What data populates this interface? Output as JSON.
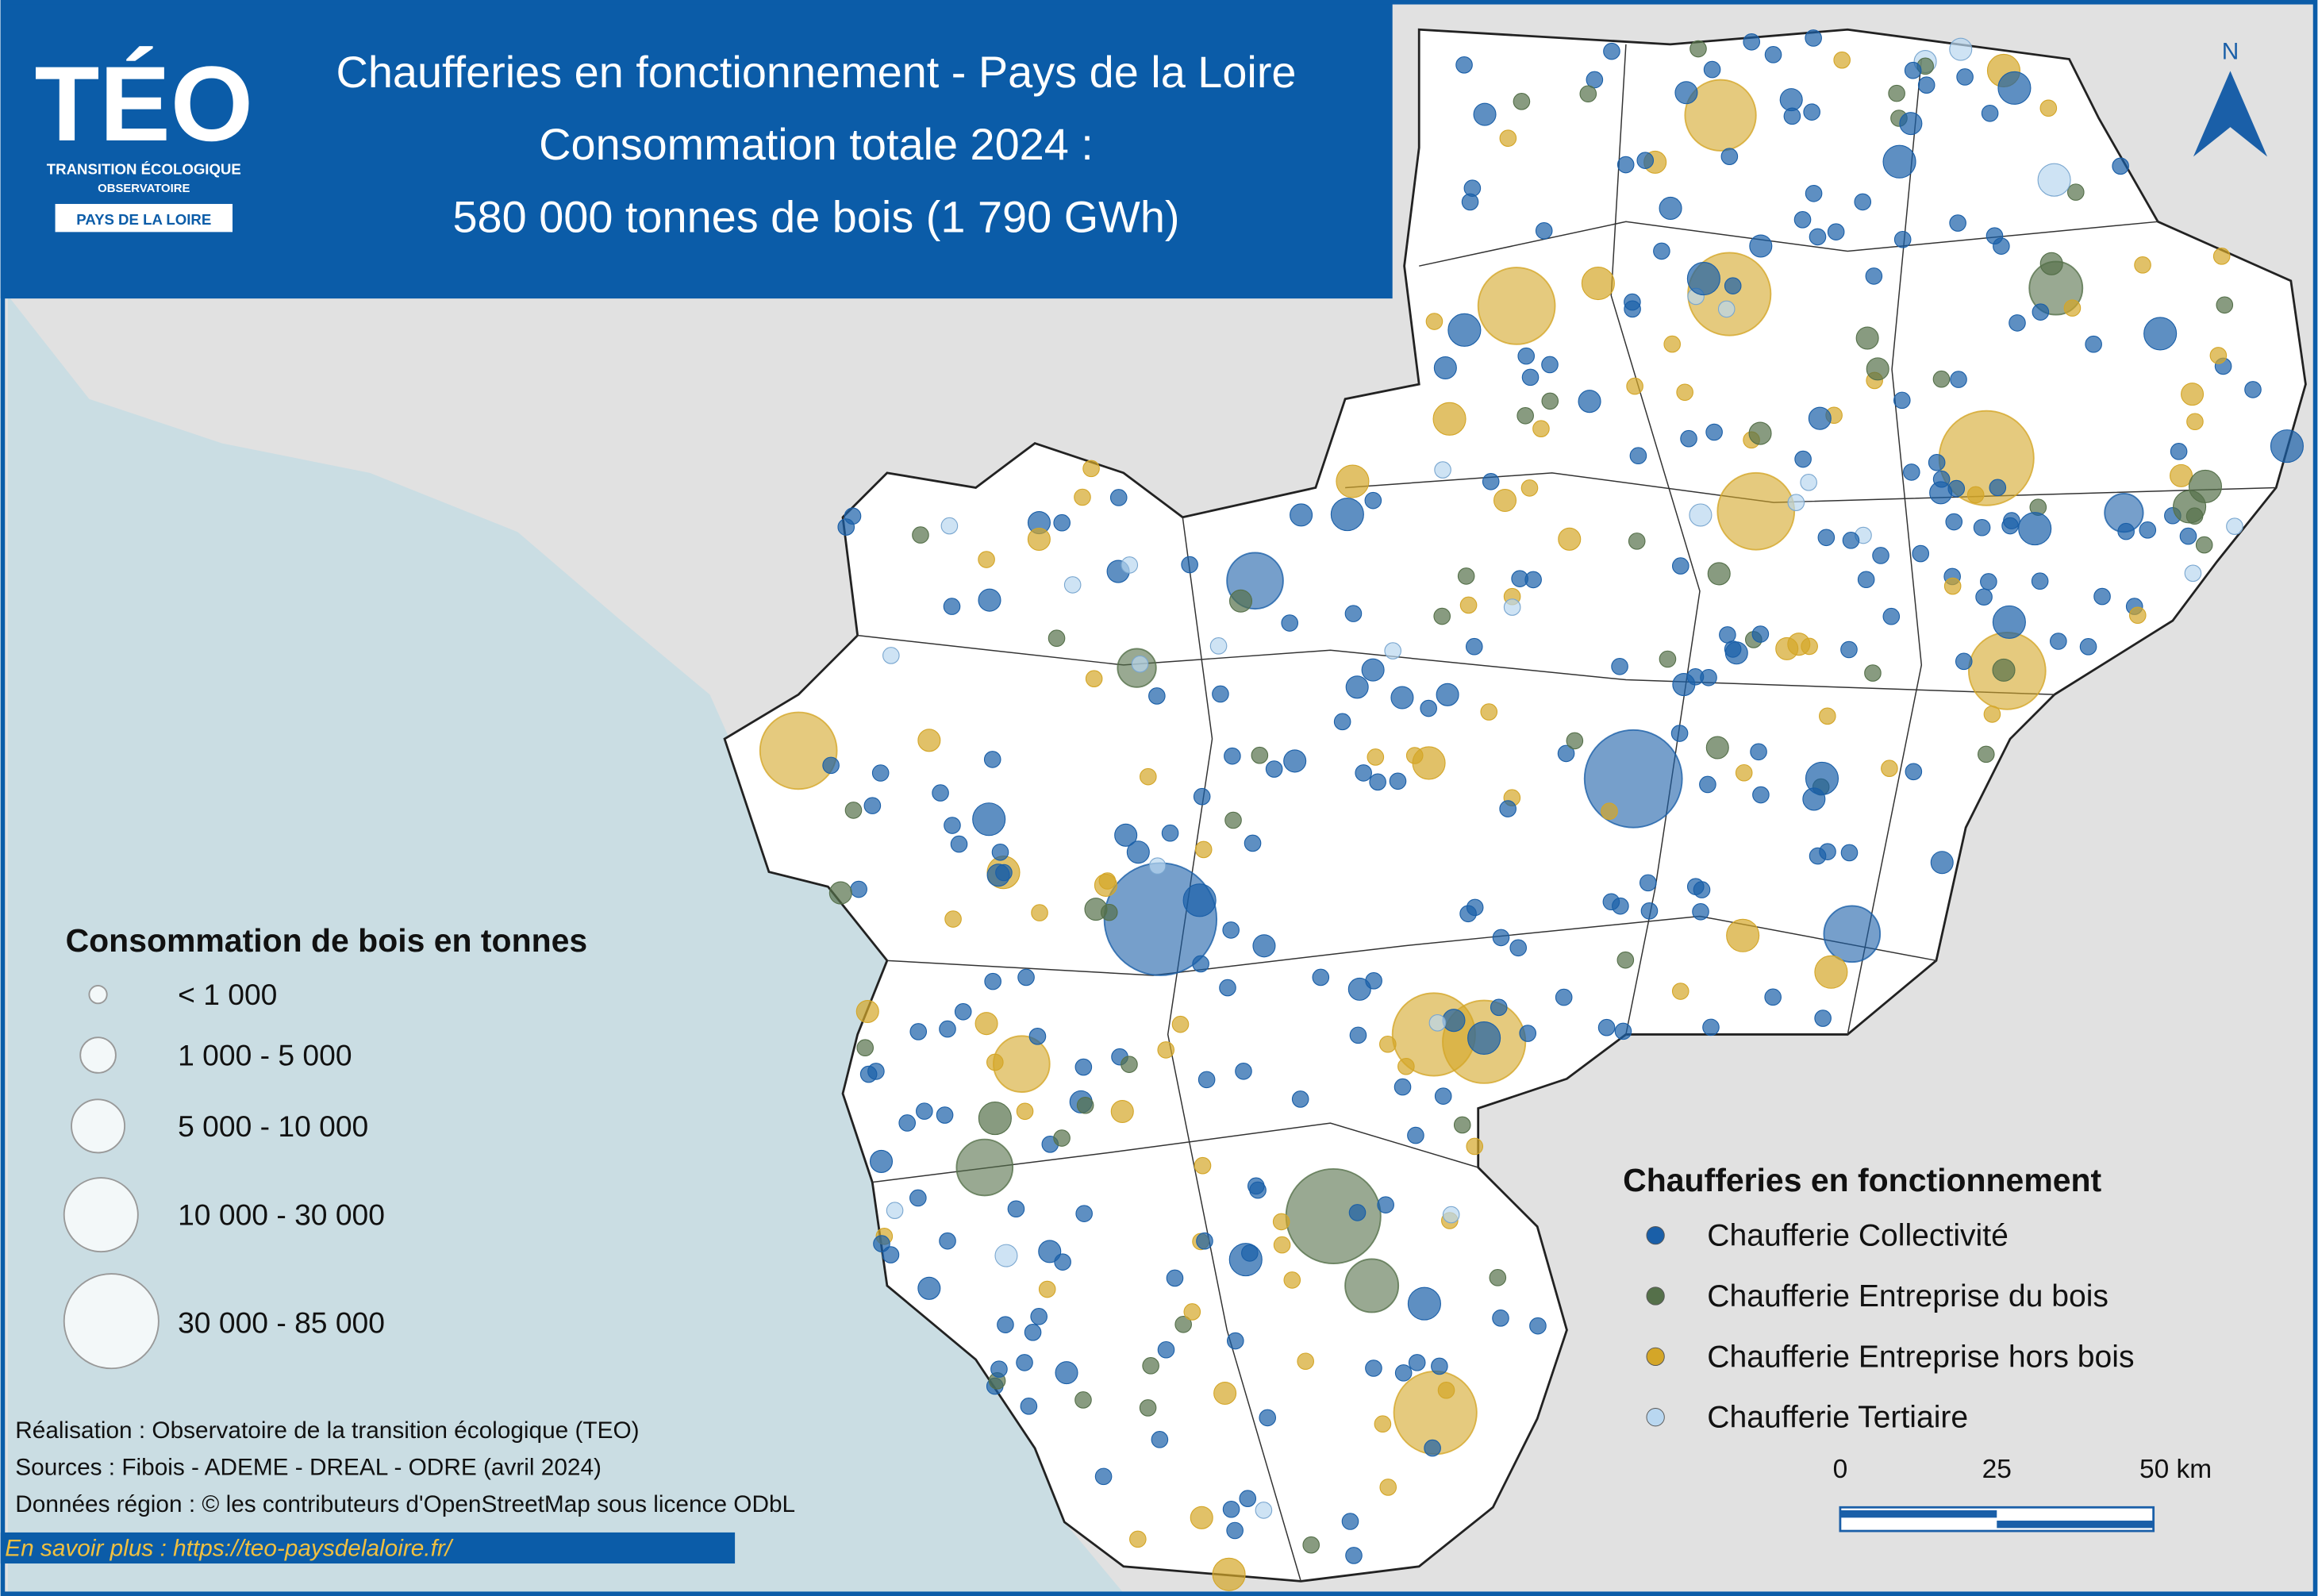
{
  "header": {
    "logo": "TÉO",
    "logo_line_1": "TRANSITION ÉCOLOGIQUE",
    "logo_line_2": "OBSERVATOIRE",
    "logo_region": "PAYS DE LA LOIRE",
    "title_lines": [
      "Chaufferies en fonctionnement - Pays de la Loire",
      "Consommation totale 2024 :",
      "580 000 tonnes de bois (1 790 GWh)"
    ]
  },
  "north_label": "N",
  "size_legend": {
    "title": "Consommation de bois en tonnes",
    "classes": [
      "< 1 000",
      "1 000 - 5 000",
      "5 000 - 10 000",
      "10 000 - 30 000",
      "30 000 - 85 000"
    ]
  },
  "type_legend": {
    "title": "Chaufferies en fonctionnement",
    "items": [
      {
        "label": "Chaufferie Collectivité",
        "color": "#1a5fa8"
      },
      {
        "label": "Chaufferie Entreprise du bois",
        "color": "#55704a"
      },
      {
        "label": "Chaufferie Entreprise hors bois",
        "color": "#d4a628"
      },
      {
        "label": "Chaufferie Tertiaire",
        "color": "#b9d7f0"
      }
    ]
  },
  "credits": [
    "Réalisation : Observatoire de la transition écologique (TEO)",
    "Sources : Fibois - ADEME - DREAL - ODRE (avril 2024)",
    "Données région : © les contributeurs d'OpenStreetMap sous licence ODbL"
  ],
  "link": "En savoir plus : https://teo-paysdelaloire.fr/",
  "scale_bar": {
    "labels": [
      "0",
      "25",
      "50 km"
    ]
  }
}
